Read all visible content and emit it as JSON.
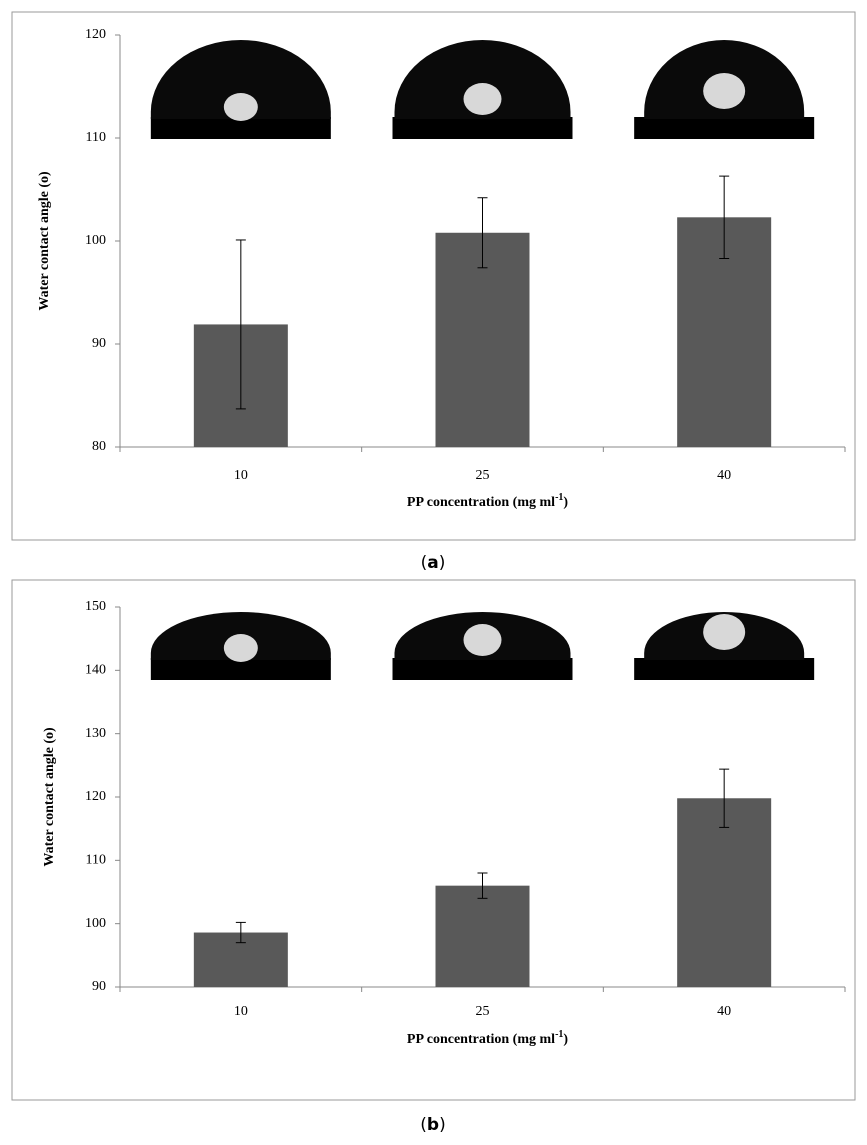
{
  "chart_data": [
    {
      "type": "bar",
      "ylabel": "Water contact angle (o)",
      "xlabel": [
        "PP concentration (mg ml",
        "-1",
        ")"
      ],
      "categories": [
        "10",
        "25",
        "40"
      ],
      "values": [
        91.9,
        100.8,
        102.3
      ],
      "errors": [
        8.2,
        3.4,
        4.0
      ],
      "color": "#595959",
      "ylim": [
        80,
        120
      ],
      "yticks": [
        80,
        90,
        100,
        110,
        120
      ],
      "caption": [
        "(",
        "a",
        ")"
      ]
    },
    {
      "type": "bar",
      "ylabel": "Water contact angle (o)",
      "xlabel": [
        "PP concentration (mg ml",
        "-1",
        ")"
      ],
      "categories": [
        "10",
        "25",
        "40"
      ],
      "values": [
        98.6,
        106.0,
        119.8
      ],
      "errors": [
        1.6,
        2.0,
        4.6
      ],
      "color": "#595959",
      "ylim": [
        90,
        150
      ],
      "yticks": [
        90,
        100,
        110,
        120,
        130,
        140,
        150
      ],
      "caption": [
        "(",
        "b",
        ")"
      ]
    }
  ]
}
